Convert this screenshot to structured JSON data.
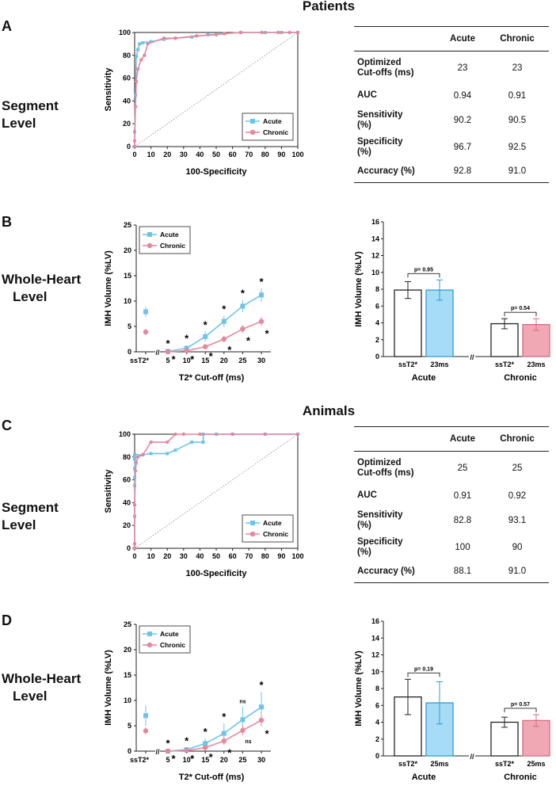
{
  "sections": {
    "patients": "Patients",
    "animals": "Animals"
  },
  "panels": {
    "A": "A",
    "B": "B",
    "C": "C",
    "D": "D"
  },
  "row_labels": {
    "segment": [
      "Segment",
      "Level"
    ],
    "whole_heart": [
      "Whole-Heart",
      "Level"
    ]
  },
  "tables": {
    "patients": {
      "columns": [
        "Acute",
        "Chronic"
      ],
      "rows": [
        {
          "label": [
            "Optimized",
            "Cut-offs (ms)"
          ],
          "acute": "23",
          "chronic": "23"
        },
        {
          "label": [
            "AUC"
          ],
          "acute": "0.94",
          "chronic": "0.91"
        },
        {
          "label": [
            "Sensitivity",
            "(%)"
          ],
          "acute": "90.2",
          "chronic": "90.5"
        },
        {
          "label": [
            "Specificity",
            "(%)"
          ],
          "acute": "96.7",
          "chronic": "92.5"
        },
        {
          "label": [
            "Accuracy (%)"
          ],
          "acute": "92.8",
          "chronic": "91.0"
        }
      ]
    },
    "animals": {
      "columns": [
        "Acute",
        "Chronic"
      ],
      "rows": [
        {
          "label": [
            "Optimized",
            "Cut-offs (ms)"
          ],
          "acute": "25",
          "chronic": "25"
        },
        {
          "label": [
            "AUC"
          ],
          "acute": "0.91",
          "chronic": "0.92"
        },
        {
          "label": [
            "Sensitivity",
            "(%)"
          ],
          "acute": "82.8",
          "chronic": "93.1"
        },
        {
          "label": [
            "Specificity",
            "(%)"
          ],
          "acute": "100",
          "chronic": "90"
        },
        {
          "label": [
            "Accuracy (%)"
          ],
          "acute": "88.1",
          "chronic": "91.0"
        }
      ]
    }
  },
  "colors": {
    "acute": "#6ec3ea",
    "chronic": "#e8869a",
    "acute_fill": "#a6dcf5",
    "chronic_fill": "#f0a8b5"
  },
  "chart_data": [
    {
      "id": "roc_patients",
      "type": "line",
      "xlabel": "100-Specificity",
      "ylabel": "Sensitivity",
      "xlim": [
        0,
        100
      ],
      "ylim": [
        0,
        100
      ],
      "xticks": [
        0,
        10,
        20,
        30,
        40,
        50,
        60,
        70,
        80,
        90,
        100
      ],
      "yticks": [
        0,
        20,
        40,
        60,
        80,
        100
      ],
      "legend": "bottom-right",
      "series": [
        {
          "name": "Acute",
          "x": [
            0,
            0,
            0.5,
            1,
            2,
            3,
            5,
            10,
            18,
            25,
            35,
            45,
            55,
            65,
            80,
            90,
            100
          ],
          "y": [
            0,
            13,
            45,
            79,
            85,
            90,
            91,
            92,
            94,
            95,
            96,
            98,
            99,
            100,
            100,
            100,
            100
          ]
        },
        {
          "name": "Chronic",
          "x": [
            0,
            0,
            0.5,
            1,
            2,
            4,
            6,
            8,
            18,
            25,
            38,
            50,
            55,
            65,
            78,
            88,
            95,
            100
          ],
          "y": [
            0,
            5,
            35,
            57,
            68,
            76,
            80,
            90,
            95,
            95,
            97,
            98,
            99,
            100,
            100,
            100,
            100,
            100
          ]
        }
      ]
    },
    {
      "id": "vol_patients",
      "type": "line",
      "xlabel": "T2* Cut-off (ms)",
      "ylabel": "IMH Volume (%LV)",
      "ylim": [
        0,
        25
      ],
      "yticks": [
        0,
        5,
        10,
        15,
        20,
        25
      ],
      "x_categories": [
        "ssT2*",
        "5",
        "10",
        "15",
        "20",
        "25",
        "30"
      ],
      "legend": "top-left",
      "series": [
        {
          "name": "Acute",
          "ss": {
            "value": 7.9,
            "err": 1.0
          },
          "x": [
            5,
            10,
            15,
            20,
            25,
            30
          ],
          "values": [
            0.1,
            0.7,
            3.0,
            6.0,
            9.0,
            11.2
          ],
          "err": [
            0.2,
            0.6,
            1.0,
            1.1,
            1.2,
            1.3
          ],
          "labels": [
            "*",
            "*",
            "*",
            "*",
            "*",
            "*"
          ]
        },
        {
          "name": "Chronic",
          "ss": {
            "value": 3.9,
            "err": 0.6
          },
          "x": [
            5,
            10,
            15,
            20,
            25,
            30
          ],
          "values": [
            0.0,
            0.2,
            1.0,
            2.5,
            4.5,
            6.0
          ],
          "err": [
            0.1,
            0.2,
            0.4,
            0.6,
            0.8,
            0.9
          ],
          "labels": [
            "*",
            "*",
            "*",
            "*",
            "*",
            "*"
          ]
        }
      ]
    },
    {
      "id": "bar_patients",
      "type": "bar",
      "ylabel": "IMH Volume (%LV)",
      "ylim": [
        0,
        16
      ],
      "yticks": [
        0,
        2,
        4,
        6,
        8,
        10,
        12,
        14,
        16
      ],
      "groups": [
        {
          "name": "Acute",
          "categories": [
            "ssT2*",
            "23ms"
          ],
          "values": [
            7.9,
            7.9
          ],
          "err": [
            1.0,
            1.2
          ],
          "p": "p= 0.95"
        },
        {
          "name": "Chronic",
          "categories": [
            "ssT2*",
            "23ms"
          ],
          "values": [
            3.9,
            3.8
          ],
          "err": [
            0.6,
            0.7
          ],
          "p": "p= 0.54"
        }
      ]
    },
    {
      "id": "roc_animals",
      "type": "line",
      "xlabel": "100-Specificity",
      "ylabel": "Sensitivity",
      "xlim": [
        0,
        100
      ],
      "ylim": [
        0,
        100
      ],
      "xticks": [
        0,
        10,
        20,
        30,
        40,
        50,
        60,
        70,
        80,
        90,
        100
      ],
      "yticks": [
        0,
        20,
        40,
        60,
        80,
        100
      ],
      "legend": "bottom-right",
      "series": [
        {
          "name": "Acute",
          "x": [
            0,
            0,
            0,
            0,
            0,
            0,
            0,
            0,
            5,
            10,
            20,
            25,
            35,
            42,
            42,
            50,
            60,
            80,
            100
          ],
          "y": [
            0,
            28,
            55,
            62,
            70,
            78,
            80,
            82,
            82,
            83,
            83,
            86,
            93,
            93,
            100,
            100,
            100,
            100,
            100
          ]
        },
        {
          "name": "Chronic",
          "x": [
            0,
            0,
            0,
            0.5,
            1,
            2,
            5,
            10,
            20,
            25,
            30,
            40,
            60,
            80,
            100
          ],
          "y": [
            0,
            4,
            38,
            68,
            75,
            80,
            82,
            93,
            93,
            100,
            100,
            100,
            100,
            100,
            100
          ]
        }
      ]
    },
    {
      "id": "vol_animals",
      "type": "line",
      "xlabel": "T2* Cut-off (ms)",
      "ylabel": "IMH Volume (%LV)",
      "ylim": [
        0,
        25
      ],
      "yticks": [
        0,
        5,
        10,
        15,
        20,
        25
      ],
      "x_categories": [
        "ssT2*",
        "5",
        "10",
        "15",
        "20",
        "25",
        "30"
      ],
      "legend": "top-left",
      "series": [
        {
          "name": "Acute",
          "ss": {
            "value": 7.0,
            "err": 2.0
          },
          "x": [
            5,
            10,
            15,
            20,
            25,
            30
          ],
          "values": [
            0.0,
            0.3,
            1.5,
            3.5,
            6.2,
            8.7
          ],
          "err": [
            0.2,
            0.4,
            1.0,
            2.0,
            2.6,
            3.0
          ],
          "labels": [
            "*",
            "*",
            "*",
            "*",
            "ns",
            "*"
          ]
        },
        {
          "name": "Chronic",
          "ss": {
            "value": 4.0,
            "err": 0.7
          },
          "x": [
            5,
            10,
            15,
            20,
            25,
            30
          ],
          "values": [
            0.0,
            0.1,
            0.7,
            2.0,
            4.1,
            6.1
          ],
          "err": [
            0.1,
            0.2,
            0.4,
            0.8,
            1.0,
            1.2
          ],
          "labels": [
            "*",
            "*",
            "*",
            "*",
            "ns",
            "*"
          ]
        }
      ]
    },
    {
      "id": "bar_animals",
      "type": "bar",
      "ylabel": "IMH Volume (%LV)",
      "ylim": [
        0,
        16
      ],
      "yticks": [
        0,
        2,
        4,
        6,
        8,
        10,
        12,
        14,
        16
      ],
      "groups": [
        {
          "name": "Acute",
          "categories": [
            "ssT2*",
            "25ms"
          ],
          "values": [
            7.0,
            6.3
          ],
          "err": [
            2.1,
            2.5
          ],
          "p": "p= 0.19"
        },
        {
          "name": "Chronic",
          "categories": [
            "ssT2*",
            "25ms"
          ],
          "values": [
            4.0,
            4.2
          ],
          "err": [
            0.6,
            0.7
          ],
          "p": "p= 0.57"
        }
      ]
    }
  ]
}
